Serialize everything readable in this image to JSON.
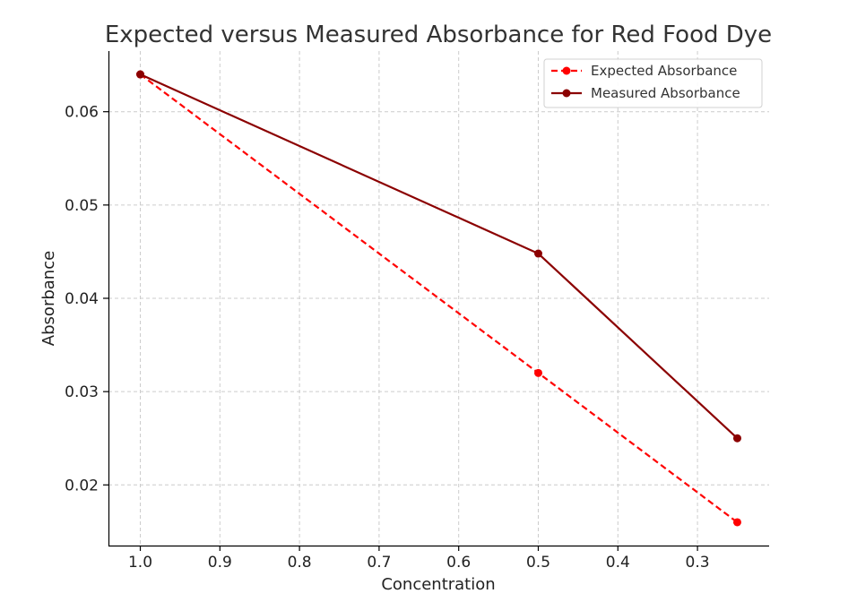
{
  "chart_data": {
    "type": "line",
    "title": "Expected versus Measured Absorbance for Red Food Dye",
    "xlabel": "Concentration",
    "ylabel": "Absorbance",
    "x_inverted": true,
    "xlim": [
      1.04,
      0.21
    ],
    "ylim": [
      0.0135,
      0.0665
    ],
    "x_ticks": [
      1.0,
      0.9,
      0.8,
      0.7,
      0.6,
      0.5,
      0.4,
      0.3
    ],
    "x_tick_labels": [
      "1.0",
      "0.9",
      "0.8",
      "0.7",
      "0.6",
      "0.5",
      "0.4",
      "0.3"
    ],
    "y_ticks": [
      0.02,
      0.03,
      0.04,
      0.05,
      0.06
    ],
    "y_tick_labels": [
      "0.02",
      "0.03",
      "0.04",
      "0.05",
      "0.06"
    ],
    "grid": true,
    "legend_position": "top-right",
    "series": [
      {
        "name": "Expected Absorbance",
        "x": [
          1.0,
          0.5,
          0.25
        ],
        "values": [
          0.064,
          0.032,
          0.016
        ],
        "color": "#ff0000",
        "line_style": "dashed",
        "marker": "circle"
      },
      {
        "name": "Measured Absorbance",
        "x": [
          1.0,
          0.5,
          0.25
        ],
        "values": [
          0.064,
          0.0448,
          0.025
        ],
        "color": "#8b0000",
        "line_style": "solid",
        "marker": "circle"
      }
    ]
  }
}
